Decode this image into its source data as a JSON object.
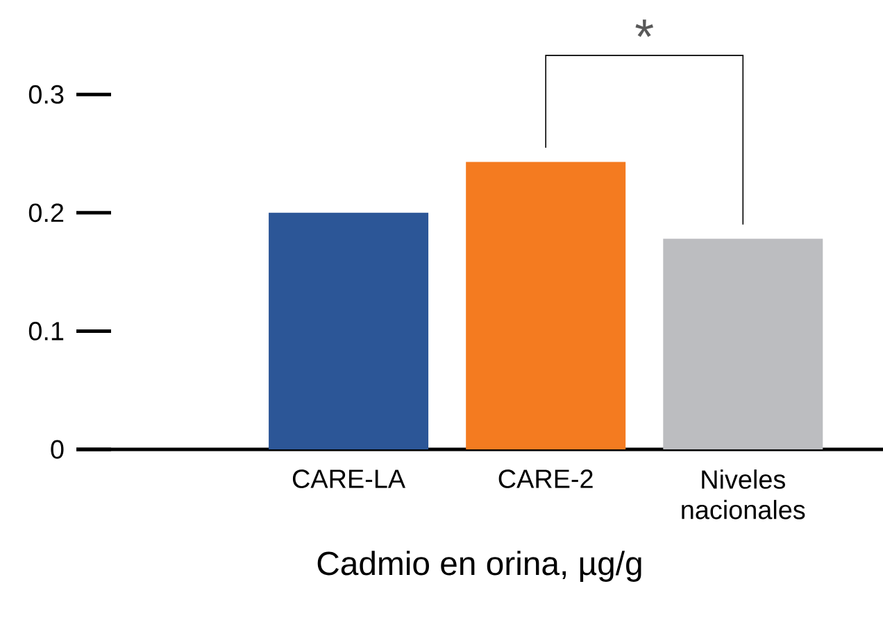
{
  "chart_data": {
    "type": "bar",
    "xlabel": "Cadmio en orina, µg/g",
    "categories": [
      "CARE-LA",
      "CARE-2",
      "Niveles nacionales"
    ],
    "values": [
      0.2,
      0.243,
      0.178
    ],
    "colors": [
      "#2c5697",
      "#f47b20",
      "#bcbdc0"
    ],
    "ylim": [
      0,
      0.3
    ],
    "yticks": [
      0,
      0.1,
      0.2,
      0.3
    ],
    "annotations": [
      "*"
    ]
  }
}
